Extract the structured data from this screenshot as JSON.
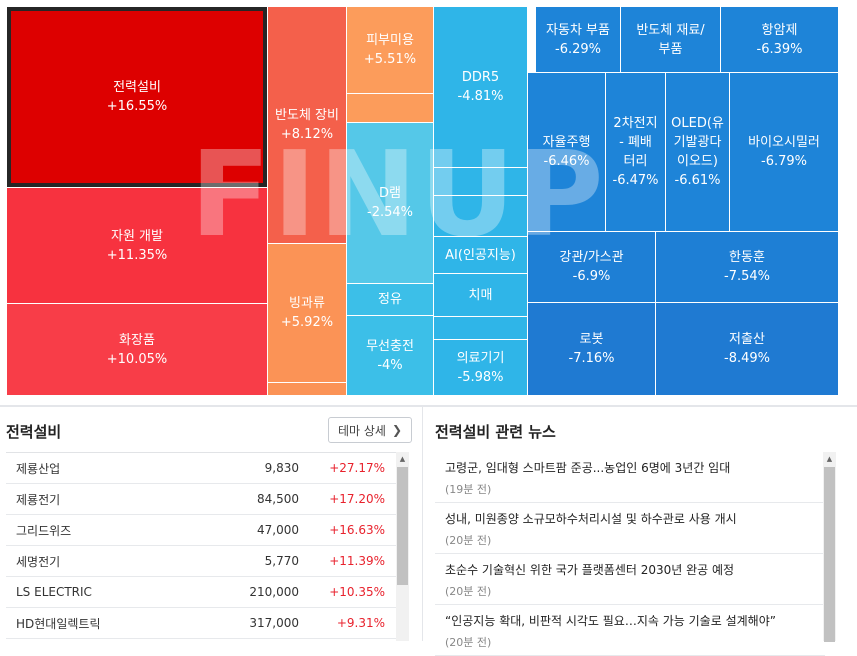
{
  "treemap": {
    "watermark": "FINUP",
    "tiles": [
      {
        "id": "t1",
        "name": "전력설비",
        "change": "+16.55%",
        "color": "#dd0000",
        "selected": true
      },
      {
        "id": "t2",
        "name": "자원 개발",
        "change": "+11.35%",
        "color": "#f7323f"
      },
      {
        "id": "t3",
        "name": "화장품",
        "change": "+10.05%",
        "color": "#f83d48"
      },
      {
        "id": "t4",
        "name": "반도체 장비",
        "change": "+8.12%",
        "color": "#f4604b"
      },
      {
        "id": "t5",
        "name": "빙과류",
        "change": "+5.92%",
        "color": "#fb9356"
      },
      {
        "id": "t6",
        "name": "",
        "change": "",
        "color": "#fb9356"
      },
      {
        "id": "t7",
        "name": "피부미용",
        "change": "+5.51%",
        "color": "#fc9c5b"
      },
      {
        "id": "t8",
        "name": "",
        "change": "",
        "color": "#fc9c5b"
      },
      {
        "id": "t9",
        "name": "D램",
        "change": "-2.54%",
        "color": "#55c8e8"
      },
      {
        "id": "t10",
        "name": "정유",
        "change": "",
        "color": "#3cbfe8"
      },
      {
        "id": "t11",
        "name": "무선충전",
        "change": "-4%",
        "color": "#3cbfe8"
      },
      {
        "id": "t12",
        "name": "DDR5",
        "change": "-4.81%",
        "color": "#2fb5e8"
      },
      {
        "id": "t13",
        "name": "",
        "change": "",
        "color": "#2fb5e8"
      },
      {
        "id": "t14",
        "name": "",
        "change": "",
        "color": "#2fb5e8"
      },
      {
        "id": "t15",
        "name": "AI(인공지능)",
        "change": "",
        "color": "#2fb5e8"
      },
      {
        "id": "t16",
        "name": "치매",
        "change": "",
        "color": "#2fb5e8"
      },
      {
        "id": "t17",
        "name": "",
        "change": "",
        "color": "#2fb5e8"
      },
      {
        "id": "t18",
        "name": "의료기기",
        "change": "-5.98%",
        "color": "#2fb5e8"
      },
      {
        "id": "t19",
        "name": "자동차 부품",
        "change": "-6.29%",
        "color": "#1e84d8"
      },
      {
        "id": "t20",
        "name": "반도체 재료/\n부품",
        "change": "",
        "color": "#1e84d8"
      },
      {
        "id": "t21",
        "name": "항암제",
        "change": "-6.39%",
        "color": "#1e84d8"
      },
      {
        "id": "t22",
        "name": "자율주행",
        "change": "-6.46%",
        "color": "#1e84d8"
      },
      {
        "id": "t23",
        "name": "2차전지\n- 폐배\n터리",
        "change": "-6.47%",
        "color": "#1e84d8"
      },
      {
        "id": "t24",
        "name": "OLED(유\n기발광다\n이오드)",
        "change": "-6.61%",
        "color": "#1e84d8"
      },
      {
        "id": "t25",
        "name": "바이오시밀러",
        "change": "-6.79%",
        "color": "#1e84d8"
      },
      {
        "id": "t26",
        "name": "강관/가스관",
        "change": "-6.9%",
        "color": "#1e7fd5"
      },
      {
        "id": "t27",
        "name": "한동훈",
        "change": "-7.54%",
        "color": "#1e7fd5"
      },
      {
        "id": "t28",
        "name": "로봇",
        "change": "-7.16%",
        "color": "#1f7ad2"
      },
      {
        "id": "t29",
        "name": "저출산",
        "change": "-8.49%",
        "color": "#1f7ad2"
      }
    ]
  },
  "stocks": {
    "title": "전력설비",
    "detail_label": "테마 상세",
    "up_color": "#e8222d",
    "rows": [
      {
        "name": "제룡산업",
        "price": "9,830",
        "change": "+27.17%"
      },
      {
        "name": "제룡전기",
        "price": "84,500",
        "change": "+17.20%"
      },
      {
        "name": "그리드위즈",
        "price": "47,000",
        "change": "+16.63%"
      },
      {
        "name": "세명전기",
        "price": "5,770",
        "change": "+11.39%"
      },
      {
        "name": "LS ELECTRIC",
        "price": "210,000",
        "change": "+10.35%"
      },
      {
        "name": "HD현대일렉트릭",
        "price": "317,000",
        "change": "+9.31%"
      }
    ]
  },
  "news": {
    "title": "전력설비 관련 뉴스",
    "items": [
      {
        "headline": "고령군, 임대형 스마트팜 준공...농업인 6명에 3년간 임대",
        "time": "(19분 전)"
      },
      {
        "headline": "성내, 미원종양 소규모하수처리시설 및 하수관로 사용 개시",
        "time": "(20분 전)"
      },
      {
        "headline": "초순수 기술혁신 위한 국가 플랫폼센터 2030년 완공 예정",
        "time": "(20분 전)"
      },
      {
        "headline": "“인공지능 확대, 비판적 시각도 필요…지속 가능 기술로 설계해야”",
        "time": "(20분 전)"
      }
    ]
  }
}
